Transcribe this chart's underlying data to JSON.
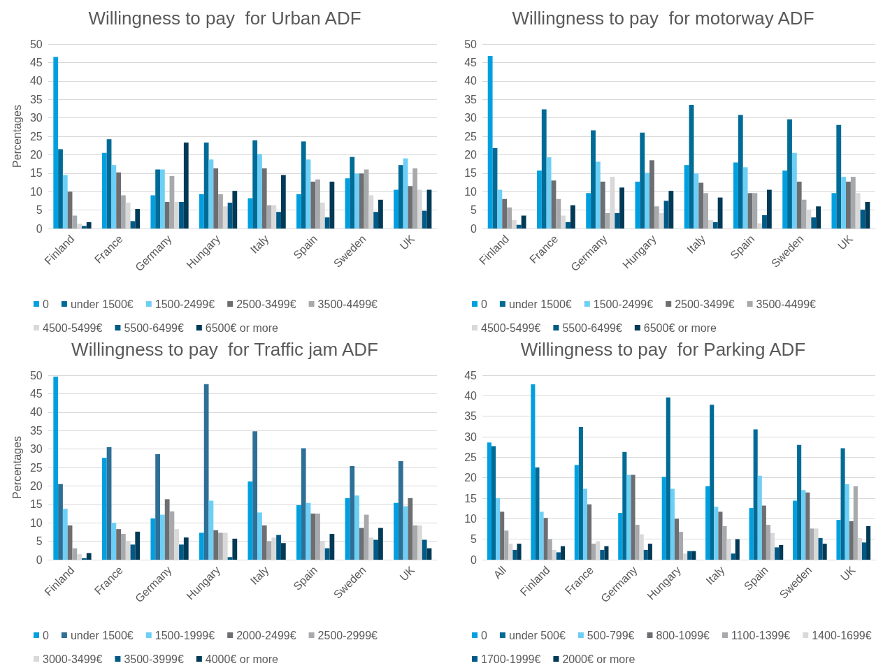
{
  "chart_data": [
    {
      "type": "bar",
      "title": "Willingness to pay  for Urban ADF",
      "ylabel": "Percentages",
      "categories": [
        "Finland",
        "France",
        "Germany",
        "Hungary",
        "Italy",
        "Spain",
        "Sweden",
        "UK"
      ],
      "ylim": [
        0,
        50
      ],
      "yticks": [
        0,
        5,
        10,
        15,
        20,
        25,
        30,
        35,
        40,
        45,
        50
      ],
      "grid": "y",
      "legend": "bottom",
      "series": [
        {
          "name": "0",
          "color": "#00a0e0",
          "values": [
            46.5,
            20.5,
            9,
            9.3,
            8.2,
            9.3,
            13.6,
            10.5
          ]
        },
        {
          "name": "under 1500€",
          "color": "#006b96",
          "values": [
            21.5,
            24.2,
            16,
            23.3,
            23.9,
            23.6,
            19.4,
            17.2
          ]
        },
        {
          "name": "1500-2499€",
          "color": "#6dcff6",
          "values": [
            14.5,
            17.2,
            16,
            18.7,
            20.2,
            18.7,
            14.9,
            19
          ]
        },
        {
          "name": "2500-3499€",
          "color": "#6d6e71",
          "values": [
            10,
            15.2,
            7.2,
            16.3,
            16.3,
            12.7,
            14.9,
            11.5
          ]
        },
        {
          "name": "3500-4499€",
          "color": "#a7a9ac",
          "values": [
            3.5,
            9,
            14.2,
            9.3,
            6.3,
            13.3,
            16,
            16.3
          ]
        },
        {
          "name": "4500-5499€",
          "color": "#d9d9d9",
          "values": [
            1.3,
            7,
            7.2,
            6,
            6.3,
            7,
            9,
            10.5
          ]
        },
        {
          "name": "5500-6499€",
          "color": "#005a86",
          "values": [
            0.7,
            2,
            7.2,
            7,
            4.5,
            3,
            4.5,
            4.8
          ]
        },
        {
          "name": "6500€ or more",
          "color": "#003a57",
          "values": [
            1.7,
            5.3,
            23.3,
            10.2,
            14.5,
            12.7,
            7.8,
            10.5
          ]
        }
      ]
    },
    {
      "type": "bar",
      "title": "Willingness to pay  for motorway ADF",
      "categories": [
        "Finland",
        "France",
        "Germany",
        "Hungary",
        "Italy",
        "Spain",
        "Sweden",
        "UK"
      ],
      "ylim": [
        0,
        50
      ],
      "yticks": [
        0,
        5,
        10,
        15,
        20,
        25,
        30,
        35,
        40,
        45,
        50
      ],
      "grid": "y",
      "legend": "bottom",
      "series": [
        {
          "name": "0",
          "color": "#00a0e0",
          "values": [
            46.8,
            15.7,
            9.6,
            12.7,
            17.2,
            17.9,
            15.7,
            9.6
          ]
        },
        {
          "name": "under 1500€",
          "color": "#006b96",
          "values": [
            21.8,
            32.3,
            26.6,
            26,
            33.5,
            30.8,
            29.6,
            28.1
          ]
        },
        {
          "name": "1500-2499€",
          "color": "#6dcff6",
          "values": [
            10.5,
            19.3,
            18.1,
            15.1,
            14.9,
            16.6,
            20.5,
            14
          ]
        },
        {
          "name": "2500-3499€",
          "color": "#6d6e71",
          "values": [
            8,
            13,
            12.7,
            18.5,
            12.4,
            9.6,
            12.7,
            12.7
          ]
        },
        {
          "name": "3500-4499€",
          "color": "#a7a9ac",
          "values": [
            5.7,
            8,
            4.2,
            6,
            9.6,
            9.6,
            7.8,
            14
          ]
        },
        {
          "name": "4500-5499€",
          "color": "#d9d9d9",
          "values": [
            2.3,
            3.5,
            14,
            4.2,
            2.3,
            1.4,
            5,
            9.6
          ]
        },
        {
          "name": "5500-6499€",
          "color": "#005a86",
          "values": [
            1,
            1.7,
            4.2,
            7.5,
            1.7,
            3.6,
            3,
            5.1
          ]
        },
        {
          "name": "6500€ or more",
          "color": "#003a57",
          "values": [
            3.5,
            6.3,
            11.1,
            10.2,
            8.4,
            10.5,
            6,
            7.2
          ]
        }
      ]
    },
    {
      "type": "bar",
      "title": "Willingness to pay  for Traffic jam ADF",
      "ylabel": "Percentages",
      "categories": [
        "Finland",
        "France",
        "Germany",
        "Hungary",
        "Italy",
        "Spain",
        "Sweden",
        "UK"
      ],
      "ylim": [
        0,
        50
      ],
      "yticks": [
        0,
        5,
        10,
        15,
        20,
        25,
        30,
        35,
        40,
        45,
        50
      ],
      "grid": "y",
      "legend": "bottom",
      "series": [
        {
          "name": "0",
          "color": "#00a0e0",
          "values": [
            49.6,
            27.6,
            11.2,
            7.3,
            21.2,
            14.8,
            16.7,
            15.4
          ]
        },
        {
          "name": "under 1500€",
          "color": "#2e6f96",
          "values": [
            20.5,
            30.5,
            28.6,
            47.6,
            34.8,
            30.2,
            25.4,
            26.7
          ]
        },
        {
          "name": "1500-1999€",
          "color": "#6dcff6",
          "values": [
            13.8,
            10,
            12.2,
            16,
            12.8,
            15.4,
            17.4,
            14.5
          ]
        },
        {
          "name": "2000-2499€",
          "color": "#6d6e71",
          "values": [
            9.3,
            8.3,
            16.4,
            8,
            9.3,
            12.5,
            8.6,
            16.7
          ]
        },
        {
          "name": "2500-2999€",
          "color": "#a7a9ac",
          "values": [
            3.1,
            7,
            13.1,
            7.3,
            5,
            12.5,
            12.2,
            9.3
          ]
        },
        {
          "name": "3000-3499€",
          "color": "#d9d9d9",
          "values": [
            1.5,
            5,
            8.3,
            7.3,
            6,
            5,
            6,
            9.3
          ]
        },
        {
          "name": "3500-3999€",
          "color": "#005a86",
          "values": [
            0.4,
            4.1,
            4.1,
            0.7,
            6.7,
            3.1,
            5.4,
            5.4
          ]
        },
        {
          "name": "4000€ or more",
          "color": "#003a57",
          "values": [
            1.8,
            7.6,
            6,
            5.7,
            4.5,
            7,
            8.6,
            3.1
          ]
        }
      ]
    },
    {
      "type": "bar",
      "title": "Willingness to pay  for Parking ADF",
      "categories": [
        "All",
        "Finland",
        "France",
        "Germany",
        "Hungary",
        "Italy",
        "Spain",
        "Sweden",
        "UK"
      ],
      "ylim": [
        0,
        45
      ],
      "yticks": [
        0,
        5,
        10,
        15,
        20,
        25,
        30,
        35,
        40,
        45
      ],
      "grid": "y",
      "legend": "bottom",
      "series": [
        {
          "name": "0",
          "color": "#00a0e0",
          "values": [
            28.6,
            42.8,
            23.1,
            11.4,
            20.2,
            17.9,
            12.6,
            14.4,
            9.7
          ]
        },
        {
          "name": "under 500€",
          "color": "#006b96",
          "values": [
            27.7,
            22.5,
            32.4,
            26.3,
            39.6,
            37.8,
            31.8,
            28,
            27.2
          ]
        },
        {
          "name": "500-799€",
          "color": "#6dcff6",
          "values": [
            15,
            11.7,
            17.3,
            20.7,
            17.3,
            12.9,
            20.5,
            17,
            18.4
          ]
        },
        {
          "name": "800-1099€",
          "color": "#6d6e71",
          "values": [
            11.7,
            10.2,
            13.5,
            20.7,
            10,
            11.7,
            13.2,
            16.4,
            9.4
          ]
        },
        {
          "name": "1100-1399€",
          "color": "#a7a9ac",
          "values": [
            7.1,
            5,
            3.9,
            8.5,
            6.8,
            8.2,
            8.5,
            7.6,
            17.9
          ]
        },
        {
          "name": "1400-1699€",
          "color": "#d9d9d9",
          "values": [
            3.9,
            2.4,
            4.5,
            6.2,
            1.5,
            5,
            6.5,
            7.6,
            5.3
          ]
        },
        {
          "name": "1700-1999€",
          "color": "#005a86",
          "values": [
            2.4,
            1.8,
            2.4,
            2.4,
            2.1,
            1.5,
            3,
            5.3,
            4.2
          ]
        },
        {
          "name": "2000€ or more",
          "color": "#003a57",
          "values": [
            3.9,
            3.3,
            3.3,
            3.9,
            2.1,
            5,
            3.6,
            3.9,
            8.2
          ]
        }
      ]
    }
  ]
}
